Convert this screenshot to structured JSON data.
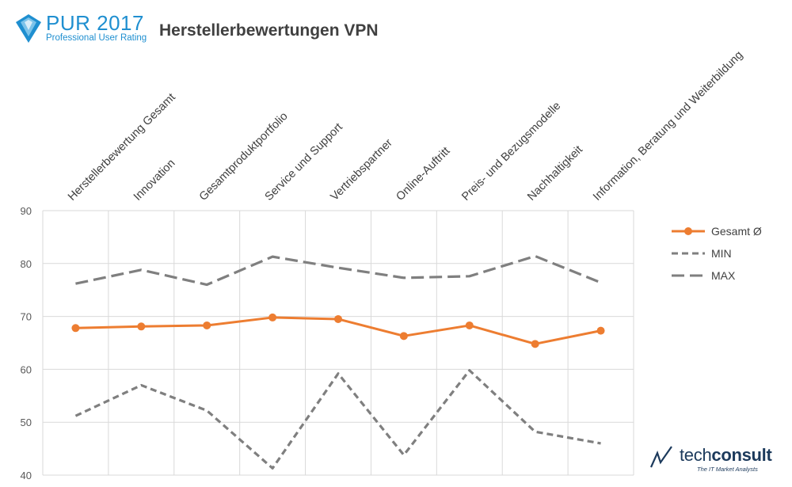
{
  "header": {
    "logo_title": "PUR 2017",
    "logo_subtitle": "Professional User Rating",
    "title": "Herstellerbewertungen VPN"
  },
  "footer": {
    "brand_light": "tech",
    "brand_bold": "consult",
    "brand_tagline": "The IT Market Analysts"
  },
  "colors": {
    "logo_blue": "#1f8fd0",
    "gesamt": "#ed7d31",
    "min_max": "#7f7f7f",
    "grid": "#d9d9d9",
    "brand_dark": "#1c3a5c"
  },
  "chart_data": {
    "type": "line",
    "categories": [
      "Herstellerbewertung Gesamt",
      "Innovation",
      "Gesamtproduktportfolio",
      "Service und Support",
      "Vertriebspartner",
      "Online-Auftritt",
      "Preis- und Bezugsmodelle",
      "Nachhaltigkeit",
      "Information, Beratung und Weiterbildung"
    ],
    "ylim": [
      40,
      90
    ],
    "yticks": [
      "40",
      "50",
      "60",
      "70",
      "80",
      "90"
    ],
    "grid": true,
    "legend_position": "right",
    "series": [
      {
        "name": "Gesamt Ø",
        "style": "solid-markers",
        "color": "#ed7d31",
        "values": [
          67.8,
          68.1,
          68.3,
          69.8,
          69.5,
          66.3,
          68.3,
          64.8,
          67.3
        ]
      },
      {
        "name": "MIN",
        "style": "short-dash",
        "color": "#7f7f7f",
        "values": [
          51.2,
          57.0,
          52.2,
          41.3,
          59.2,
          43.8,
          59.8,
          48.2,
          46.0
        ]
      },
      {
        "name": "MAX",
        "style": "long-dash",
        "color": "#7f7f7f",
        "values": [
          76.2,
          78.8,
          76.0,
          81.3,
          79.2,
          77.3,
          77.6,
          81.4,
          76.4
        ]
      }
    ]
  }
}
